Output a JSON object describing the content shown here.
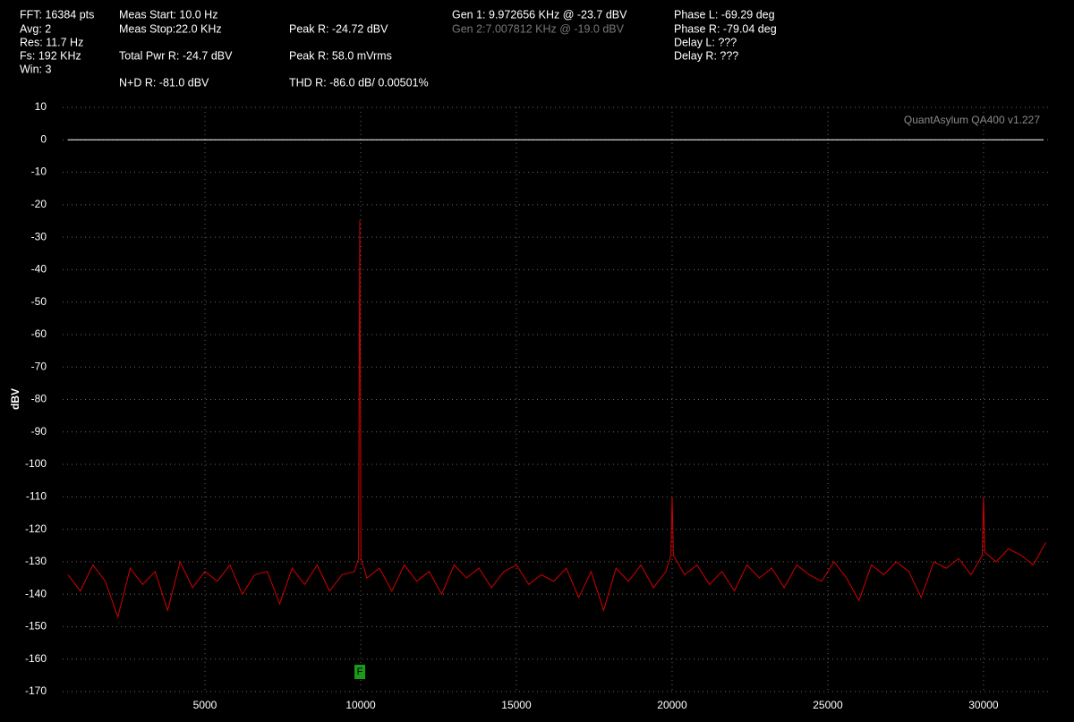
{
  "chart_data": {
    "type": "line",
    "annotations": [
      "FFT: 16384 pts",
      "Avg: 2",
      "Res: 11.7 Hz",
      "Fs: 192 KHz",
      "Win: 3",
      "Meas Start: 10.0 Hz",
      "Meas Stop:22.0 KHz",
      "Total Pwr R: -24.7 dBV",
      "N+D R: -81.0 dBV",
      "Peak R: -24.72 dBV",
      "Peak R: 58.0 mVrms",
      "THD R: -86.0 dB/ 0.00501%",
      "Gen 1: 9.972656 KHz @ -23.7  dBV",
      "Gen 2:7.007812 KHz @ -19.0  dBV",
      "Phase L: -69.29 deg",
      "Phase R: -79.04 deg",
      "Delay L: ???",
      "Delay R: ???"
    ],
    "watermark": "QuantAsylum QA400 v1.227",
    "ylabel": "dBV",
    "marker_label": "F",
    "marker_x": 9972,
    "reference_line": 0,
    "x": [
      600,
      1000,
      1400,
      1800,
      2200,
      2600,
      3000,
      3400,
      3800,
      4200,
      4600,
      5000,
      5400,
      5800,
      6200,
      6600,
      7000,
      7400,
      7800,
      8200,
      8600,
      9000,
      9400,
      9800,
      9930,
      9972,
      10010,
      10200,
      10600,
      11000,
      11400,
      11800,
      12200,
      12600,
      13000,
      13400,
      13800,
      14200,
      14600,
      15000,
      15400,
      15800,
      16200,
      16600,
      17000,
      17400,
      17800,
      18200,
      18600,
      19000,
      19400,
      19800,
      19960,
      20000,
      20040,
      20400,
      20800,
      21200,
      21600,
      22000,
      22400,
      22800,
      23200,
      23600,
      24000,
      24400,
      24800,
      25200,
      25600,
      26000,
      26400,
      26800,
      27200,
      27600,
      28000,
      28400,
      28800,
      29200,
      29600,
      29960,
      30000,
      30040,
      30400,
      30800,
      31200,
      31600,
      32000
    ],
    "series": [
      {
        "name": "R",
        "color": "#d40000",
        "values": [
          -134,
          -139,
          -131,
          -136,
          -147,
          -132,
          -137,
          -133,
          -145,
          -130,
          -138,
          -133,
          -136,
          -131,
          -140,
          -134,
          -133,
          -143,
          -132,
          -137,
          -131,
          -139,
          -134,
          -133,
          -129,
          -24.7,
          -129,
          -135,
          -132,
          -139,
          -131,
          -136,
          -133,
          -140,
          -131,
          -135,
          -132,
          -138,
          -133,
          -131,
          -137,
          -134,
          -136,
          -132,
          -141,
          -133,
          -145,
          -132,
          -136,
          -131,
          -138,
          -133,
          -128,
          -110,
          -128,
          -134,
          -131,
          -137,
          -133,
          -139,
          -131,
          -135,
          -132,
          -138,
          -131,
          -134,
          -136,
          -130,
          -135,
          -142,
          -131,
          -134,
          -130,
          -133,
          -141,
          -130,
          -132,
          -129,
          -134,
          -128,
          -110,
          -127,
          -130,
          -126,
          -128,
          -131,
          -124
        ]
      }
    ],
    "xlim": [
      430,
      32100
    ],
    "xticks": [
      5000,
      10000,
      15000,
      20000,
      25000,
      30000
    ],
    "ylim": [
      -170,
      10
    ],
    "yticks": [
      10,
      0,
      -10,
      -20,
      -30,
      -40,
      -50,
      -60,
      -70,
      -80,
      -90,
      -100,
      -110,
      -120,
      -130,
      -140,
      -150,
      -160,
      -170
    ],
    "grid": true
  }
}
